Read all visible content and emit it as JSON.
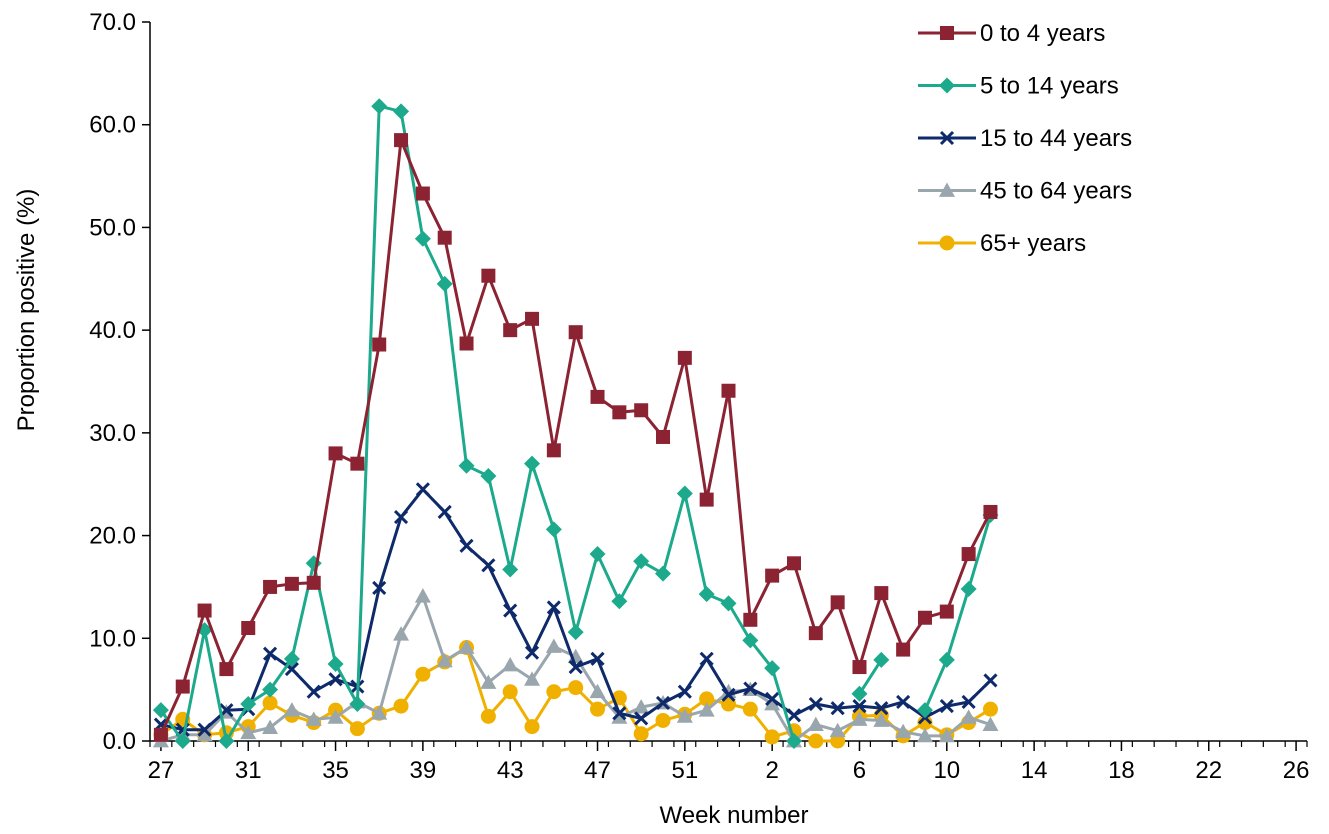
{
  "chart_data": {
    "type": "line",
    "title": "",
    "xlabel": "Week number",
    "ylabel": "Proportion positive (%)",
    "ylim": [
      0,
      70
    ],
    "y_ticks": [
      "0.0",
      "10.0",
      "20.0",
      "30.0",
      "40.0",
      "50.0",
      "60.0",
      "70.0"
    ],
    "x_tick_labels": [
      "27",
      "31",
      "35",
      "39",
      "43",
      "47",
      "51",
      "2",
      "6",
      "10",
      "14",
      "18",
      "22",
      "26"
    ],
    "weeks": [
      27,
      28,
      29,
      30,
      31,
      32,
      33,
      34,
      35,
      36,
      37,
      38,
      39,
      40,
      41,
      42,
      43,
      44,
      45,
      46,
      47,
      48,
      49,
      50,
      51,
      52,
      53,
      1,
      2,
      3,
      4,
      5,
      6,
      7,
      8,
      9,
      10,
      11,
      12,
      13,
      14,
      15,
      16,
      17,
      18,
      19,
      20,
      21,
      22,
      23,
      24,
      25,
      26
    ],
    "grid": false,
    "legend_position": "top-right",
    "series": [
      {
        "name": "0 to 4 years",
        "color": "#8B2332",
        "marker": "square",
        "values": [
          0.6,
          5.3,
          12.7,
          7.0,
          11.0,
          15.0,
          15.3,
          15.4,
          28.0,
          27.0,
          38.6,
          58.5,
          53.3,
          49.0,
          38.7,
          45.3,
          40.0,
          41.1,
          28.3,
          39.8,
          33.5,
          32.0,
          32.2,
          29.6,
          37.3,
          23.5,
          34.1,
          11.8,
          16.1,
          17.3,
          10.5,
          13.5,
          7.2,
          14.4,
          8.9,
          12.0,
          12.6,
          18.2,
          22.3
        ]
      },
      {
        "name": "5 to 14 years",
        "color": "#1DAA8C",
        "marker": "diamond",
        "values": [
          3.0,
          0.0,
          10.8,
          0.0,
          3.6,
          5.0,
          8.0,
          17.3,
          7.5,
          3.6,
          61.8,
          61.3,
          48.9,
          44.5,
          26.8,
          25.8,
          16.7,
          27.0,
          20.6,
          10.6,
          18.2,
          13.6,
          17.5,
          16.3,
          24.1,
          14.3,
          13.4,
          9.8,
          7.1,
          0.0,
          null,
          null,
          4.6,
          7.9,
          null,
          3.0,
          7.9,
          14.8,
          22.0
        ]
      },
      {
        "name": "15 to 44 years",
        "color": "#0E2A6B",
        "marker": "cross",
        "values": [
          1.6,
          1.1,
          1.1,
          3.0,
          3.1,
          8.5,
          7.0,
          4.8,
          6.0,
          5.3,
          14.9,
          21.8,
          24.5,
          22.3,
          19.0,
          17.1,
          12.7,
          8.6,
          13.0,
          7.2,
          8.0,
          2.7,
          2.2,
          3.7,
          4.8,
          8.0,
          4.5,
          5.1,
          4.1,
          2.5,
          3.6,
          3.2,
          3.4,
          3.2,
          3.8,
          2.3,
          3.4,
          3.8,
          5.9
        ]
      },
      {
        "name": "45 to 64 years",
        "color": "#9AA6AE",
        "marker": "triangle",
        "values": [
          0.0,
          0.6,
          0.6,
          2.8,
          0.8,
          1.3,
          3.0,
          2.1,
          2.3,
          3.8,
          2.7,
          10.4,
          14.1,
          7.8,
          9.1,
          5.7,
          7.4,
          6.0,
          9.2,
          8.2,
          4.8,
          2.3,
          3.3,
          3.7,
          2.4,
          3.0,
          4.8,
          5.0,
          3.6,
          0.0,
          1.6,
          1.0,
          2.1,
          2.0,
          0.9,
          0.5,
          0.5,
          2.3,
          1.6
        ]
      },
      {
        "name": "65+ years",
        "color": "#F0B000",
        "marker": "circle",
        "values": [
          0.6,
          2.1,
          0.6,
          0.8,
          1.4,
          3.7,
          2.5,
          1.8,
          3.0,
          1.2,
          2.7,
          3.4,
          6.5,
          7.7,
          9.1,
          2.4,
          4.8,
          1.4,
          4.8,
          5.2,
          3.1,
          4.2,
          0.7,
          2.0,
          2.6,
          4.1,
          3.6,
          3.1,
          0.4,
          1.0,
          0.0,
          0.0,
          2.4,
          2.5,
          0.5,
          1.8,
          0.6,
          1.8,
          3.1
        ]
      }
    ]
  }
}
